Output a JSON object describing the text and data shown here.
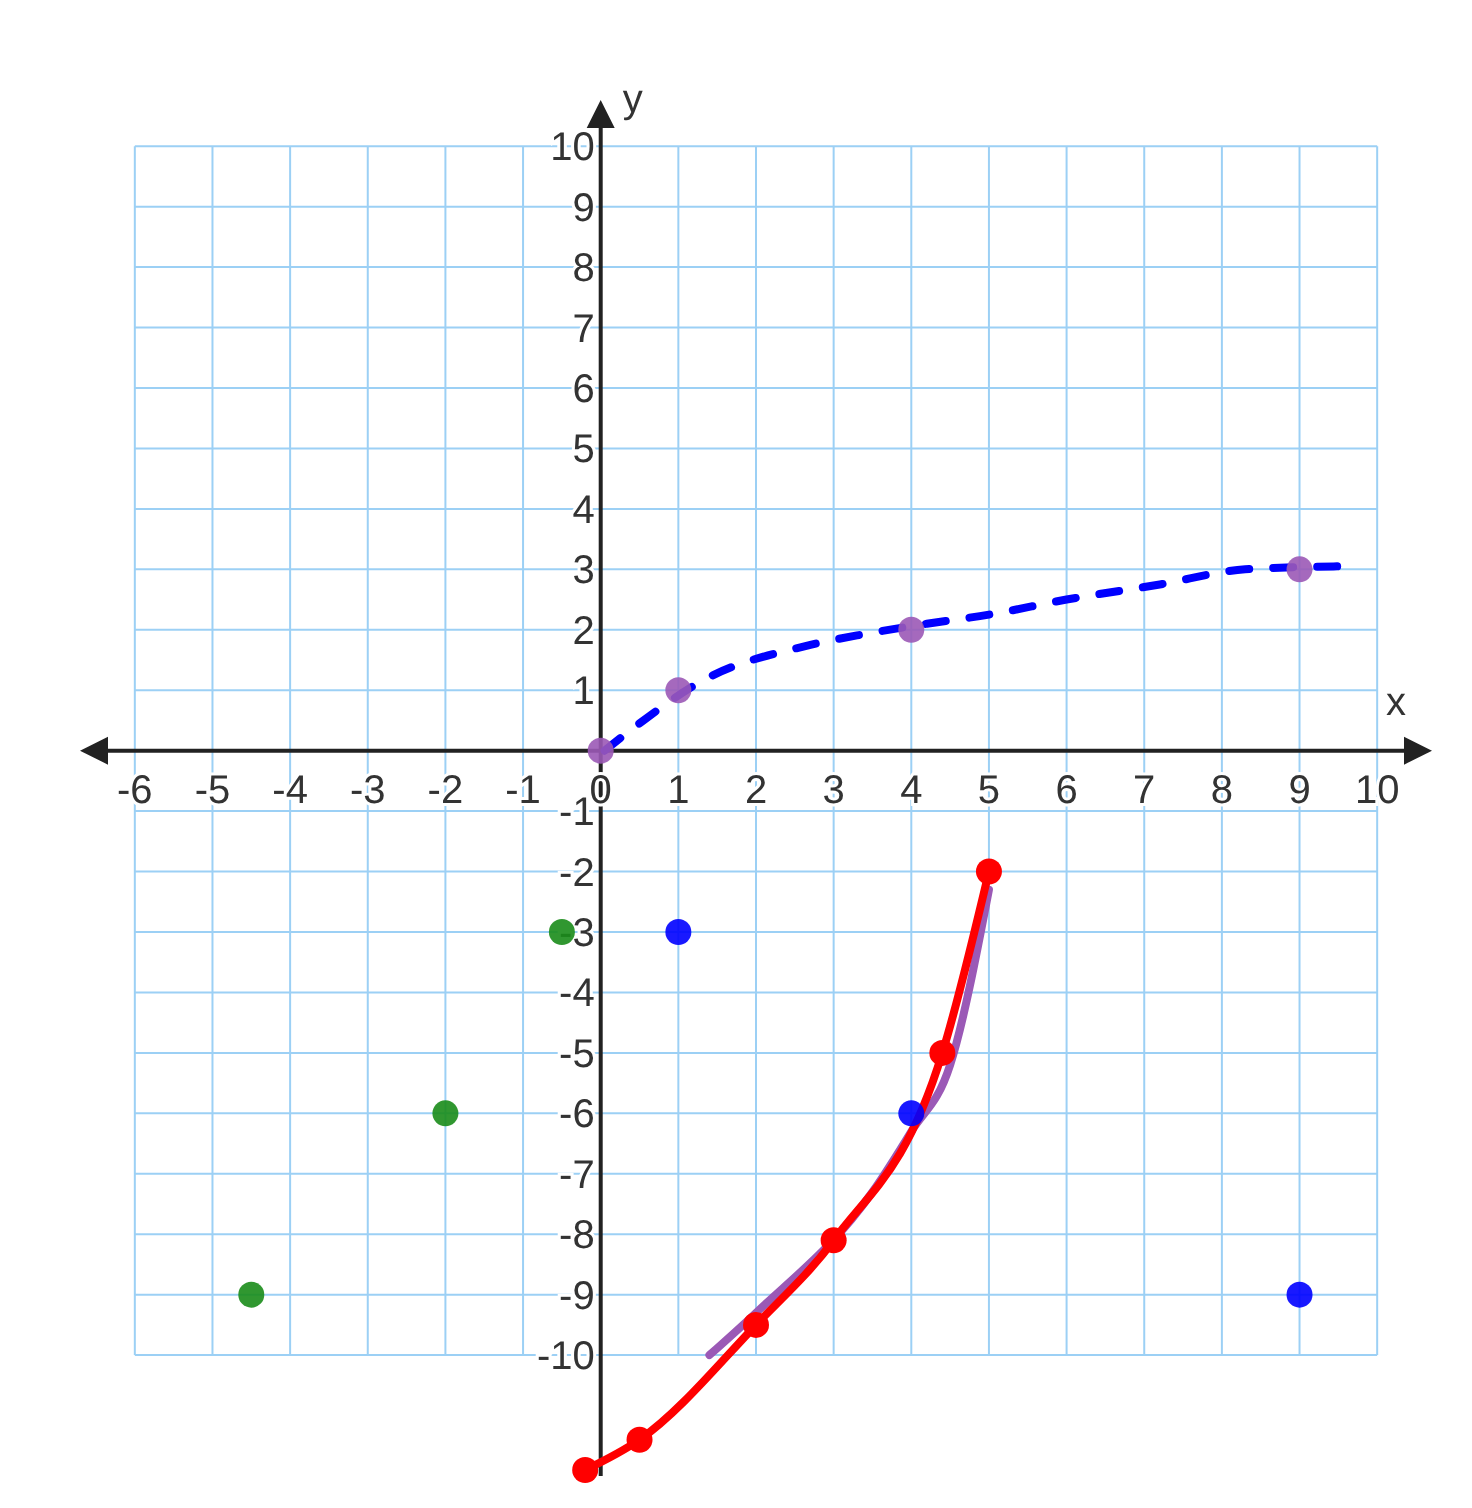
{
  "chart_data": {
    "type": "scatter",
    "xlabel": "x",
    "ylabel": "y",
    "xlim": [
      -6.5,
      10.5
    ],
    "ylim": [
      -12,
      10.5
    ],
    "xticks": [
      -6,
      -5,
      -4,
      -3,
      -2,
      -1,
      0,
      1,
      2,
      3,
      4,
      5,
      6,
      7,
      8,
      9,
      10
    ],
    "yticks": [
      -10,
      -9,
      -8,
      -7,
      -6,
      -5,
      -4,
      -3,
      -2,
      -1,
      {
        "value": 0,
        "label": null
      },
      1,
      2,
      3,
      4,
      5,
      6,
      7,
      8,
      9,
      10
    ],
    "grid": true,
    "series": [
      {
        "type": "line",
        "color": "#0000ff",
        "line_style": "dashed",
        "marker": "none",
        "x": [
          0.05,
          0.55,
          1.3,
          2.7,
          3.4,
          4.2,
          5,
          6,
          7.2,
          8.3,
          9.5
        ],
        "values": [
          0,
          0.5,
          1.15,
          1.75,
          1.93,
          2.1,
          2.25,
          2.5,
          2.75,
          3,
          3.05
        ]
      },
      {
        "color": "#9b59b6",
        "marker": "circle",
        "x": [
          0,
          1,
          4,
          9
        ],
        "values": [
          0,
          1,
          2,
          3
        ]
      },
      {
        "type": "line",
        "color": "#9b59b6",
        "line_style": "solid",
        "marker": "none",
        "x": [
          1.4,
          2,
          3.5,
          4,
          4.5,
          5
        ],
        "values": [
          -10,
          -9.3,
          -7.3,
          -6.3,
          -5.2,
          -2.3
        ]
      },
      {
        "type": "line",
        "color": "#ff0000",
        "line_style": "solid",
        "marker": "circle",
        "x": [
          -0.2,
          0.5,
          2,
          3,
          4.4,
          5
        ],
        "values": [
          -11.9,
          -11.4,
          -9.5,
          -8.1,
          -5,
          -2
        ]
      },
      {
        "color": "#1a8c1a",
        "marker": "circle",
        "x": [
          -0.5,
          -2,
          -4.5
        ],
        "values": [
          -3,
          -6,
          -9
        ]
      },
      {
        "color": "#0000ff",
        "marker": "circle",
        "x": [
          1,
          4,
          9
        ],
        "values": [
          -3,
          -6,
          -9
        ]
      }
    ]
  }
}
